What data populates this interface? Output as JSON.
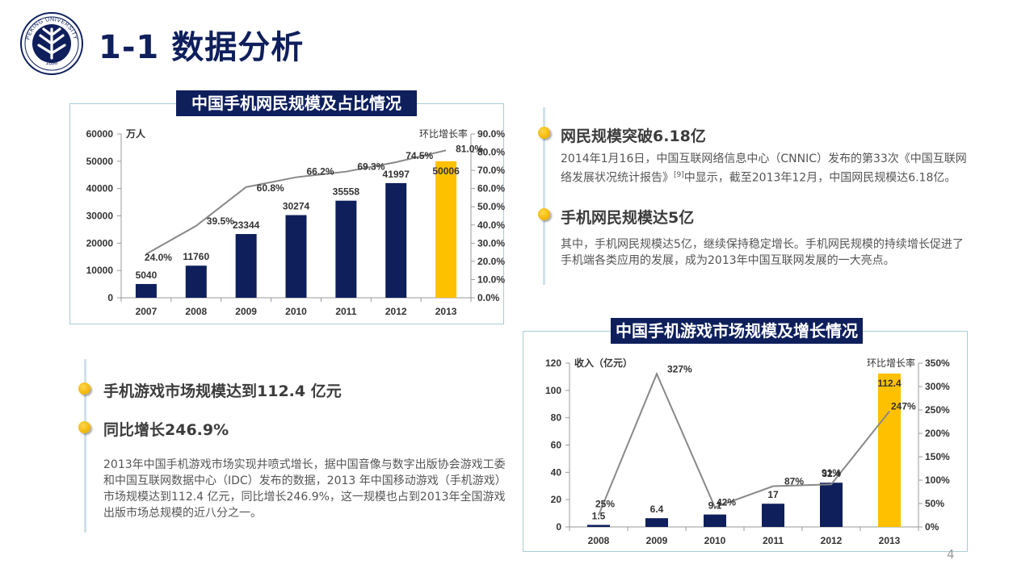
{
  "header": {
    "title": "1-1 数据分析",
    "logo": {
      "name": "peking-university-seal",
      "top_text": "PEKING UNIVERSITY",
      "year": "1898"
    }
  },
  "colors": {
    "navy": "#0e1f5c",
    "gold": "#ffc000",
    "line_gray": "#888888",
    "frame": "#a9cbd6",
    "bullet": "#f5b800"
  },
  "right_top": {
    "items": [
      {
        "heading": "网民规模突破6.18亿",
        "text_before": "2014年1月16日，中国互联网络信息中心（CNNIC）发布的第33次《中国互联网络发展状况统计报告》",
        "sup": "[9]",
        "text_after": "中显示，截至2013年12月，中国网民规模达6.18亿。"
      },
      {
        "heading": "手机网民规模达5亿",
        "text_before": "其中，手机网民规模达5亿，继续保持稳定增长。手机网民规模的持续增长促进了手机端各类应用的发展，成为2013年中国互联网发展的一大亮点。",
        "sup": "",
        "text_after": ""
      }
    ]
  },
  "left_bottom": {
    "items": [
      {
        "heading": "手机游戏市场规模达到112.4  亿元"
      },
      {
        "heading": "同比增长246.9%"
      }
    ],
    "paragraph": "2013年中国手机游戏市场实现井喷式增长，据中国音像与数字出版协会游戏工委和中国互联网数据中心（IDC）发布的数据，2013 年中国移动游戏（手机游戏）市场规模达到112.4 亿元，同比增长246.9%，这一规模也占到2013年全国游戏出版市场总规模的近八分之一。"
  },
  "page_number": "4",
  "chart_data": [
    {
      "type": "bar",
      "title": "中国手机网民规模及占比情况",
      "categories": [
        "2007",
        "2008",
        "2009",
        "2010",
        "2011",
        "2012",
        "2013"
      ],
      "ylabel": "万人",
      "y2label": "环比增长率",
      "ylim": [
        0,
        60000
      ],
      "y2lim": [
        0,
        90
      ],
      "yticks": [
        "0",
        "10000",
        "20000",
        "30000",
        "40000",
        "50000",
        "60000"
      ],
      "y2ticks": [
        "0.0%",
        "10.0%",
        "20.0%",
        "30.0%",
        "40.0%",
        "50.0%",
        "60.0%",
        "70.0%",
        "80.0%",
        "90.0%"
      ],
      "series": [
        {
          "name": "手机网民规模",
          "kind": "bar",
          "values": [
            5040,
            11760,
            23344,
            30274,
            35558,
            41997,
            50006
          ],
          "labels": [
            "5040",
            "11760",
            "23344",
            "30274",
            "35558",
            "41997",
            "50006"
          ],
          "highlight_index": 6
        },
        {
          "name": "占比",
          "kind": "line",
          "axis": "right",
          "values": [
            24.0,
            39.5,
            60.8,
            66.2,
            69.3,
            74.5,
            81.0
          ],
          "labels": [
            "24.0%",
            "39.5%",
            "60.8%",
            "66.2%",
            "69.3%",
            "74.5%",
            "81.0%"
          ]
        }
      ],
      "grid": false,
      "legend": "none"
    },
    {
      "type": "bar",
      "title": "中国手机游戏市场规模及增长情况",
      "categories": [
        "2008",
        "2009",
        "2010",
        "2011",
        "2012",
        "2013"
      ],
      "ylabel": "收入（亿元）",
      "y2label": "环比增长率",
      "ylim": [
        0,
        120
      ],
      "y2lim": [
        0,
        350
      ],
      "yticks": [
        "0",
        "20",
        "40",
        "60",
        "80",
        "100",
        "120"
      ],
      "y2ticks": [
        "0%",
        "50%",
        "100%",
        "150%",
        "200%",
        "250%",
        "300%",
        "350%"
      ],
      "series": [
        {
          "name": "收入",
          "kind": "bar",
          "values": [
            1.5,
            6.4,
            9.1,
            17,
            32.4,
            112.4
          ],
          "labels": [
            "1.5",
            "6.4",
            "9.1",
            "17",
            "32.4",
            "112.4"
          ],
          "highlight_index": 5
        },
        {
          "name": "环比增长率",
          "kind": "line",
          "axis": "right",
          "values": [
            25,
            327,
            42,
            87,
            91,
            247
          ],
          "labels": [
            "25%",
            "327%",
            "42%",
            "87%",
            "91%",
            "247%"
          ]
        }
      ],
      "grid": false,
      "legend": "none"
    }
  ]
}
